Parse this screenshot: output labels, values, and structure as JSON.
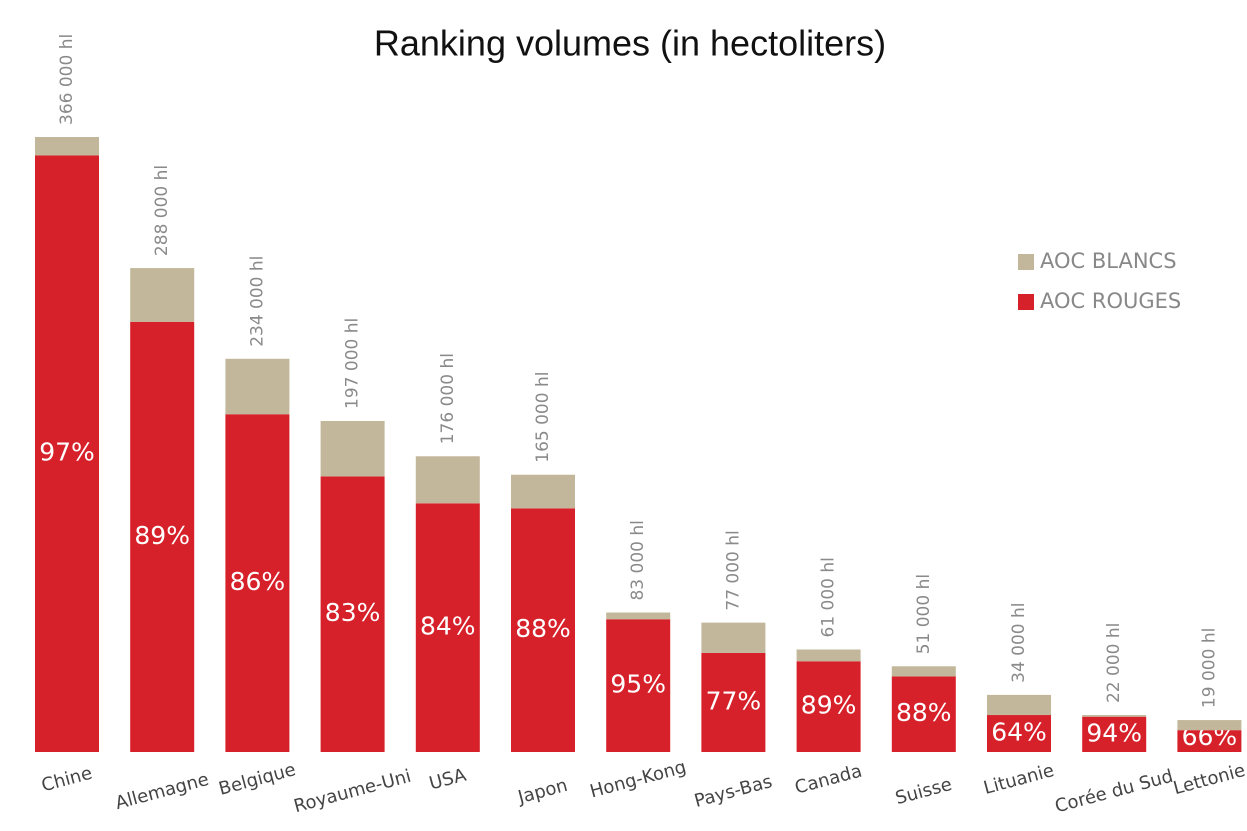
{
  "chart_data": {
    "type": "stacked_bar",
    "title": "Ranking volumes (in hectoliters)",
    "categories": [
      "Chine",
      "Allemagne",
      "Belgique",
      "Royaume-Uni",
      "USA",
      "Japon",
      "Hong-Kong",
      "Pays-Bas",
      "Canada",
      "Suisse",
      "Lituanie",
      "Corée du Sud",
      "Lettonie"
    ],
    "series": [
      {
        "name": "AOC ROUGES",
        "color": "#d7212a",
        "values": [
          355000,
          256000,
          201000,
          164000,
          148000,
          145000,
          79000,
          59000,
          54000,
          45000,
          22000,
          21000,
          13000
        ]
      },
      {
        "name": "AOC BLANCS",
        "color": "#c2b79a",
        "values": [
          11000,
          32000,
          33000,
          33000,
          28000,
          20000,
          4000,
          18000,
          7000,
          6000,
          12000,
          1000,
          6000
        ]
      }
    ],
    "totals": {
      "values": [
        366000,
        288000,
        234000,
        197000,
        176000,
        165000,
        83000,
        77000,
        61000,
        51000,
        34000,
        22000,
        19000
      ],
      "value_labels": [
        "366 000 hl",
        "288 000 hl",
        "234 000 hl",
        "197 000 hl",
        "176 000 hl",
        "165 000 hl",
        "83 000 hl",
        "77 000 hl",
        "61 000 hl",
        "51 000 hl",
        "34 000 hl",
        "22 000 hl",
        "19 000 hl"
      ]
    },
    "red_shares": {
      "values": [
        97,
        89,
        86,
        83,
        84,
        88,
        95,
        77,
        89,
        88,
        64,
        94,
        66
      ],
      "value_labels": [
        "97%",
        "89%",
        "86%",
        "83%",
        "84%",
        "88%",
        "95%",
        "77%",
        "89%",
        "88%",
        "64%",
        "94%",
        "66%"
      ]
    },
    "ylim": [
      0,
      366000
    ],
    "legend": "right"
  }
}
